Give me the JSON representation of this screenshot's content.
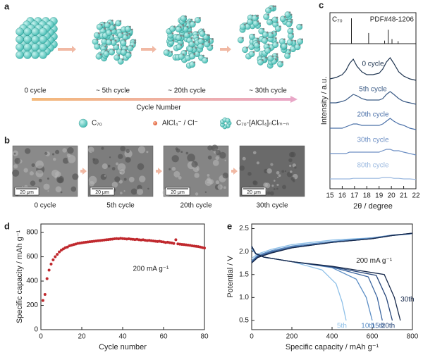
{
  "schematic": {
    "label": "a",
    "stages": [
      "0 cycle",
      "~ 5th cycle",
      "~ 20th cycle",
      "~ 30th  cycle"
    ],
    "axis_label": "Cycle Number",
    "legend": [
      "C₇₀",
      "AlCl₄⁻ / Cl⁻",
      "C₇₀-[AlCl₄]ₙClₘ₋ₙ"
    ]
  },
  "sem": {
    "label": "b",
    "scale_bars": [
      "20 μm",
      "20 μm",
      "20 μm",
      "20 μm"
    ],
    "captions": [
      "0 cycle",
      "5th cycle",
      "20th cycle",
      "30th  cycle"
    ]
  },
  "chart_data": [
    {
      "type": "line",
      "label": "c",
      "xlabel": "2θ / degree",
      "ylabel": "Intensity / a.u.",
      "xlim": [
        15,
        22
      ],
      "xticks": [
        15,
        16,
        17,
        18,
        19,
        20,
        21,
        22
      ],
      "reference": {
        "labels": [
          "C₇₀",
          "PDF#48-1206"
        ],
        "x": [
          16.75,
          18.15,
          19.45,
          19.75,
          20.05,
          20.55
        ],
        "values": [
          1.0,
          0.42,
          0.12,
          0.55,
          0.18,
          0.1
        ],
        "color": "#222222"
      },
      "x": [
        15,
        15.5,
        16,
        16.3,
        16.6,
        16.9,
        17.2,
        17.6,
        18,
        18.5,
        19,
        19.3,
        19.6,
        19.9,
        20.2,
        20.6,
        21,
        21.5,
        22
      ],
      "series": [
        {
          "name": "0 cycle",
          "color": "#1f3550",
          "values": [
            0.15,
            0.2,
            0.3,
            0.45,
            0.7,
            0.85,
            0.6,
            0.4,
            0.3,
            0.3,
            0.35,
            0.5,
            0.75,
            0.9,
            0.7,
            0.4,
            0.25,
            0.15,
            0.1
          ]
        },
        {
          "name": "5th cycle",
          "color": "#3a5a85",
          "values": [
            0.2,
            0.2,
            0.25,
            0.3,
            0.4,
            0.5,
            0.45,
            0.35,
            0.3,
            0.3,
            0.3,
            0.35,
            0.5,
            0.6,
            0.5,
            0.35,
            0.25,
            0.2,
            0.15
          ]
        },
        {
          "name": "20th cycle",
          "color": "#4a70a8",
          "values": [
            0.2,
            0.2,
            0.2,
            0.25,
            0.3,
            0.35,
            0.35,
            0.3,
            0.3,
            0.3,
            0.3,
            0.35,
            0.45,
            0.55,
            0.45,
            0.35,
            0.3,
            0.2,
            0.15
          ]
        },
        {
          "name": "30th cycle",
          "color": "#6d8fc4",
          "values": [
            0.2,
            0.2,
            0.2,
            0.2,
            0.25,
            0.25,
            0.25,
            0.25,
            0.25,
            0.25,
            0.25,
            0.3,
            0.35,
            0.35,
            0.3,
            0.3,
            0.25,
            0.2,
            0.15
          ]
        },
        {
          "name": "80th cycle",
          "color": "#9ab8df",
          "values": [
            0.2,
            0.2,
            0.2,
            0.2,
            0.2,
            0.22,
            0.22,
            0.22,
            0.22,
            0.22,
            0.22,
            0.25,
            0.25,
            0.25,
            0.22,
            0.22,
            0.2,
            0.2,
            0.18
          ]
        }
      ]
    },
    {
      "type": "scatter",
      "label": "d",
      "xlabel": "Cycle number",
      "ylabel": "Specific capacity / mAh g⁻¹",
      "annotation": "200 mA g⁻¹",
      "color": "#c0282d",
      "xlim": [
        0,
        80
      ],
      "xticks": [
        0,
        20,
        40,
        60,
        80
      ],
      "ylim": [
        0,
        870
      ],
      "yticks": [
        0,
        200,
        400,
        600,
        800
      ],
      "x": [
        1,
        2,
        3,
        4,
        5,
        6,
        7,
        8,
        9,
        10,
        11,
        12,
        13,
        14,
        15,
        16,
        17,
        18,
        19,
        20,
        21,
        22,
        23,
        24,
        25,
        26,
        27,
        28,
        29,
        30,
        31,
        32,
        33,
        34,
        35,
        36,
        37,
        38,
        39,
        40,
        41,
        42,
        43,
        44,
        45,
        46,
        47,
        48,
        49,
        50,
        51,
        52,
        53,
        54,
        55,
        56,
        57,
        58,
        59,
        60,
        61,
        62,
        63,
        64,
        65,
        66,
        67,
        68,
        69,
        70,
        71,
        72,
        73,
        74,
        75,
        76,
        77,
        78,
        79,
        80
      ],
      "values": [
        240,
        290,
        420,
        490,
        540,
        575,
        600,
        620,
        640,
        655,
        665,
        675,
        680,
        690,
        695,
        700,
        705,
        710,
        712,
        715,
        718,
        720,
        722,
        724,
        726,
        728,
        730,
        732,
        734,
        736,
        738,
        740,
        742,
        744,
        745,
        748,
        750,
        748,
        752,
        750,
        748,
        746,
        748,
        745,
        744,
        742,
        744,
        740,
        738,
        740,
        736,
        734,
        735,
        732,
        730,
        728,
        726,
        728,
        724,
        722,
        718,
        720,
        716,
        714,
        710,
        740,
        706,
        704,
        702,
        700,
        698,
        696,
        694,
        690,
        688,
        686,
        684,
        680,
        676,
        672
      ]
    },
    {
      "type": "line",
      "label": "e",
      "xlabel": "Specific capacity / mAh g⁻¹",
      "ylabel": "Potential / V",
      "annotation": "200 mA g⁻¹",
      "xlim": [
        0,
        800
      ],
      "xticks": [
        0,
        200,
        400,
        600,
        800
      ],
      "ylim": [
        0.3,
        2.6
      ],
      "yticks": [
        0.5,
        {
          "value": 1,
          "label": "1.0"
        },
        1.5,
        {
          "value": 2,
          "label": "2.0"
        },
        2.5
      ],
      "series": [
        {
          "name": "5th",
          "color": "#8ec0e8",
          "x": [
            0,
            20,
            60,
            200,
            350,
            420,
            450,
            470,
            null,
            0,
            30,
            100,
            200,
            400,
            600,
            700,
            790
          ],
          "values": [
            2.05,
            1.95,
            1.88,
            1.78,
            1.6,
            1.3,
            0.9,
            0.5,
            null,
            1.85,
            1.95,
            2.05,
            2.15,
            2.25,
            2.3,
            2.35,
            2.38
          ]
        },
        {
          "name": "10th",
          "color": "#5d8fc6",
          "x": [
            0,
            20,
            60,
            200,
            400,
            520,
            570,
            600,
            null,
            0,
            30,
            100,
            200,
            400,
            600,
            700,
            795
          ],
          "values": [
            2.1,
            1.95,
            1.88,
            1.78,
            1.65,
            1.4,
            1.0,
            0.5,
            null,
            1.8,
            1.92,
            2.02,
            2.12,
            2.22,
            2.3,
            2.36,
            2.39
          ]
        },
        {
          "name": "15th",
          "color": "#3c66a0",
          "x": [
            0,
            20,
            60,
            200,
            400,
            580,
            625,
            650,
            null,
            0,
            30,
            100,
            200,
            400,
            600,
            700,
            798
          ],
          "values": [
            2.1,
            1.95,
            1.88,
            1.78,
            1.66,
            1.45,
            1.0,
            0.5,
            null,
            1.78,
            1.9,
            2.0,
            2.1,
            2.2,
            2.28,
            2.35,
            2.39
          ]
        },
        {
          "name": "20th",
          "color": "#27467a",
          "x": [
            0,
            20,
            60,
            200,
            400,
            620,
            670,
            700,
            null,
            0,
            30,
            100,
            200,
            400,
            600,
            700,
            800
          ],
          "values": [
            2.1,
            1.95,
            1.88,
            1.78,
            1.67,
            1.48,
            1.0,
            0.5,
            null,
            1.76,
            1.88,
            1.98,
            2.08,
            2.2,
            2.28,
            2.35,
            2.4
          ]
        },
        {
          "name": "30th",
          "color": "#16284a",
          "x": [
            0,
            20,
            60,
            200,
            400,
            660,
            710,
            740,
            null,
            0,
            30,
            100,
            200,
            400,
            600,
            700,
            800
          ],
          "values": [
            2.12,
            1.96,
            1.88,
            1.78,
            1.68,
            1.5,
            1.0,
            0.5,
            null,
            1.75,
            1.87,
            1.97,
            2.08,
            2.2,
            2.28,
            2.35,
            2.4
          ]
        }
      ]
    }
  ]
}
